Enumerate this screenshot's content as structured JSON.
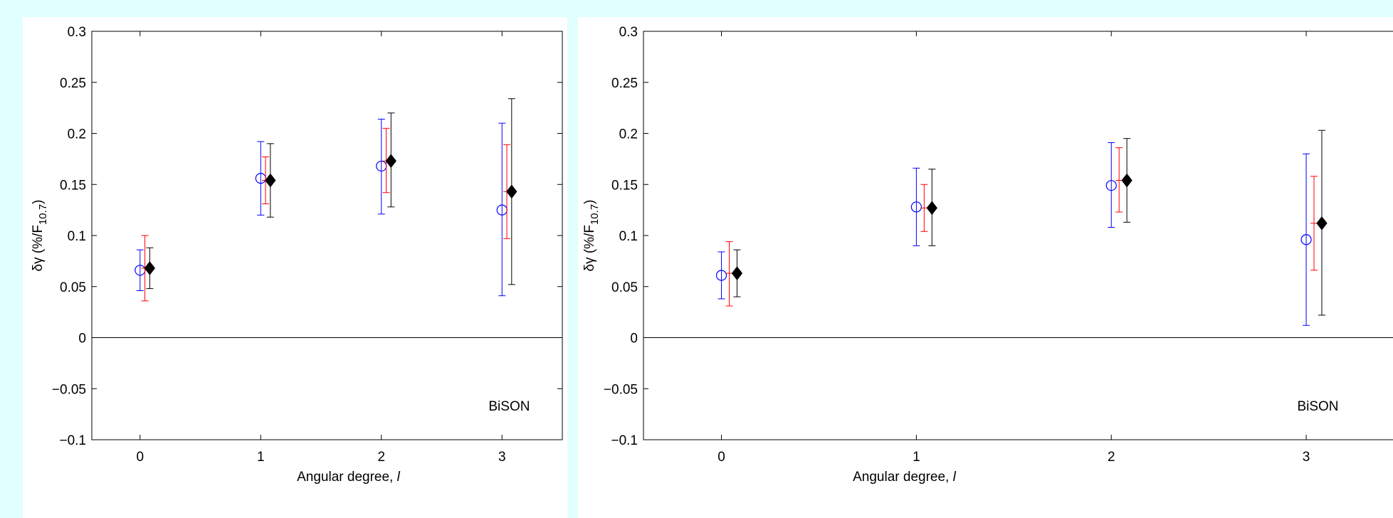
{
  "chart_data": [
    {
      "type": "scatter",
      "ylabel": "δγ (%/F",
      "ylabel_sub": "10.7",
      "ylabel_close": ")",
      "xlabel": "Angular degree, ",
      "xlabel_sym": "l",
      "annotation": "BiSON",
      "xlim": [
        -0.4,
        3.5
      ],
      "ylim": [
        -0.1,
        0.3
      ],
      "x_ticks": [
        "0",
        "1",
        "2",
        "3"
      ],
      "y_ticks": [
        "−0.1",
        "−0.05",
        "0",
        "0.05",
        "0.1",
        "0.15",
        "0.2",
        "0.25",
        "0.3"
      ],
      "series": [
        {
          "marker": "open-circle",
          "color": "#0000ff",
          "offset": 0.0,
          "points": [
            {
              "x": 0,
              "y": 0.066,
              "lo": 0.046,
              "hi": 0.086
            },
            {
              "x": 1,
              "y": 0.156,
              "lo": 0.12,
              "hi": 0.192
            },
            {
              "x": 2,
              "y": 0.168,
              "lo": 0.121,
              "hi": 0.214
            },
            {
              "x": 3,
              "y": 0.125,
              "lo": 0.041,
              "hi": 0.21
            }
          ]
        },
        {
          "marker": "none",
          "color": "#ff0000",
          "offset": 0.04,
          "points": [
            {
              "x": 0,
              "y": 0.068,
              "lo": 0.036,
              "hi": 0.1
            },
            {
              "x": 1,
              "y": 0.154,
              "lo": 0.131,
              "hi": 0.177
            },
            {
              "x": 2,
              "y": 0.173,
              "lo": 0.142,
              "hi": 0.205
            },
            {
              "x": 3,
              "y": 0.143,
              "lo": 0.097,
              "hi": 0.189
            }
          ]
        },
        {
          "marker": "filled-diamond",
          "color": "#000000",
          "offset": 0.08,
          "points": [
            {
              "x": 0,
              "y": 0.068,
              "lo": 0.048,
              "hi": 0.088
            },
            {
              "x": 1,
              "y": 0.154,
              "lo": 0.118,
              "hi": 0.19
            },
            {
              "x": 2,
              "y": 0.173,
              "lo": 0.128,
              "hi": 0.22
            },
            {
              "x": 3,
              "y": 0.143,
              "lo": 0.052,
              "hi": 0.234
            }
          ]
        }
      ]
    },
    {
      "type": "scatter",
      "ylabel": "δγ (%/F",
      "ylabel_sub": "10.7",
      "ylabel_close": ")",
      "xlabel": "Angular degree, ",
      "xlabel_sym": "l",
      "annotation": "BiSON",
      "xlim": [
        -0.4,
        3.5
      ],
      "ylim": [
        -0.1,
        0.3
      ],
      "x_ticks": [
        "0",
        "1",
        "2",
        "3"
      ],
      "y_ticks": [
        "−0.1",
        "−0.05",
        "0",
        "0.05",
        "0.1",
        "0.15",
        "0.2",
        "0.25",
        "0.3"
      ],
      "series": [
        {
          "marker": "open-circle",
          "color": "#0000ff",
          "offset": 0.0,
          "points": [
            {
              "x": 0,
              "y": 0.061,
              "lo": 0.038,
              "hi": 0.084
            },
            {
              "x": 1,
              "y": 0.128,
              "lo": 0.09,
              "hi": 0.166
            },
            {
              "x": 2,
              "y": 0.149,
              "lo": 0.108,
              "hi": 0.191
            },
            {
              "x": 3,
              "y": 0.096,
              "lo": 0.012,
              "hi": 0.18
            }
          ]
        },
        {
          "marker": "none",
          "color": "#ff0000",
          "offset": 0.04,
          "points": [
            {
              "x": 0,
              "y": 0.063,
              "lo": 0.031,
              "hi": 0.094
            },
            {
              "x": 1,
              "y": 0.127,
              "lo": 0.104,
              "hi": 0.15
            },
            {
              "x": 2,
              "y": 0.154,
              "lo": 0.123,
              "hi": 0.186
            },
            {
              "x": 3,
              "y": 0.112,
              "lo": 0.066,
              "hi": 0.158
            }
          ]
        },
        {
          "marker": "filled-diamond",
          "color": "#000000",
          "offset": 0.08,
          "points": [
            {
              "x": 0,
              "y": 0.063,
              "lo": 0.04,
              "hi": 0.086
            },
            {
              "x": 1,
              "y": 0.127,
              "lo": 0.09,
              "hi": 0.165
            },
            {
              "x": 2,
              "y": 0.154,
              "lo": 0.113,
              "hi": 0.195
            },
            {
              "x": 3,
              "y": 0.112,
              "lo": 0.022,
              "hi": 0.203
            }
          ]
        }
      ]
    }
  ]
}
